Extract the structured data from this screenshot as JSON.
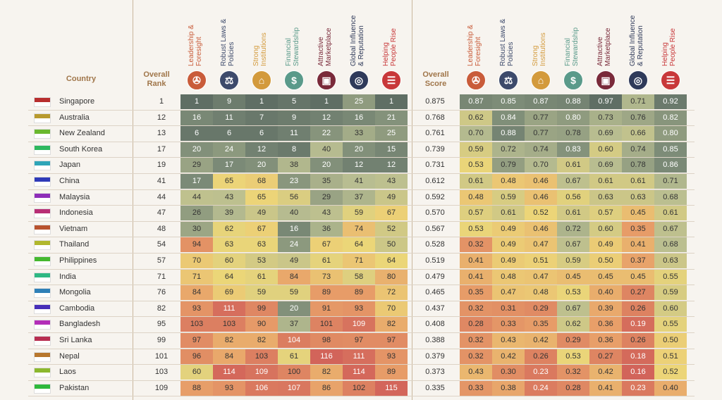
{
  "header": {
    "country": "Country",
    "overall_rank": [
      "Overall",
      "Rank"
    ],
    "overall_score": [
      "Overall",
      "Score"
    ]
  },
  "chart_data": {
    "type": "table",
    "pillars": [
      {
        "label": [
          "Leadership &",
          "Foresight"
        ],
        "color": "#c95c3a",
        "icon": "megaphone-icon"
      },
      {
        "label": [
          "Robust Laws &",
          "Policies"
        ],
        "color": "#3d4a6b",
        "icon": "scales-icon"
      },
      {
        "label": [
          "Strong",
          "Institutions"
        ],
        "color": "#d39a3c",
        "icon": "institution-icon"
      },
      {
        "label": [
          "Financial",
          "Stewardship"
        ],
        "color": "#5a9a8a",
        "icon": "finance-icon"
      },
      {
        "label": [
          "Attractive",
          "Marketplace"
        ],
        "color": "#7a2a3a",
        "icon": "market-icon"
      },
      {
        "label": [
          "Global Influence",
          "& Reputation"
        ],
        "color": "#2f3a5a",
        "icon": "globe-icon"
      },
      {
        "label": [
          "Helping",
          "People Rise"
        ],
        "color": "#c8383a",
        "icon": "ladder-icon"
      }
    ],
    "countries": [
      {
        "name": "Singapore",
        "rank": 1,
        "score": "0.875",
        "ranks": [
          1,
          9,
          1,
          5,
          1,
          25,
          1
        ],
        "scores": [
          "0.87",
          "0.85",
          "0.87",
          "0.88",
          "0.97",
          "0.71",
          "0.92"
        ]
      },
      {
        "name": "Australia",
        "rank": 12,
        "score": "0.768",
        "ranks": [
          16,
          11,
          7,
          9,
          12,
          16,
          21
        ],
        "scores": [
          "0.62",
          "0.84",
          "0.77",
          "0.80",
          "0.73",
          "0.76",
          "0.82"
        ]
      },
      {
        "name": "New Zealand",
        "rank": 13,
        "score": "0.761",
        "ranks": [
          6,
          6,
          6,
          11,
          22,
          33,
          25
        ],
        "scores": [
          "0.70",
          "0.88",
          "0.77",
          "0.78",
          "0.69",
          "0.66",
          "0.80"
        ]
      },
      {
        "name": "South Korea",
        "rank": 17,
        "score": "0.739",
        "ranks": [
          20,
          24,
          12,
          8,
          40,
          20,
          15
        ],
        "scores": [
          "0.59",
          "0.72",
          "0.74",
          "0.83",
          "0.60",
          "0.74",
          "0.85"
        ]
      },
      {
        "name": "Japan",
        "rank": 19,
        "score": "0.731",
        "ranks": [
          29,
          17,
          20,
          38,
          20,
          12,
          12
        ],
        "scores": [
          "0.53",
          "0.79",
          "0.70",
          "0.61",
          "0.69",
          "0.78",
          "0.86"
        ]
      },
      {
        "name": "China",
        "rank": 41,
        "score": "0.612",
        "ranks": [
          17,
          65,
          68,
          23,
          35,
          41,
          43
        ],
        "scores": [
          "0.61",
          "0.48",
          "0.46",
          "0.67",
          "0.61",
          "0.61",
          "0.71"
        ]
      },
      {
        "name": "Malaysia",
        "rank": 44,
        "score": "0.592",
        "ranks": [
          44,
          43,
          65,
          56,
          29,
          37,
          49
        ],
        "scores": [
          "0.48",
          "0.59",
          "0.46",
          "0.56",
          "0.63",
          "0.63",
          "0.68"
        ]
      },
      {
        "name": "Indonesia",
        "rank": 47,
        "score": "0.570",
        "ranks": [
          26,
          39,
          49,
          40,
          43,
          59,
          67
        ],
        "scores": [
          "0.57",
          "0.61",
          "0.52",
          "0.61",
          "0.57",
          "0.45",
          "0.61"
        ]
      },
      {
        "name": "Vietnam",
        "rank": 48,
        "score": "0.567",
        "ranks": [
          30,
          62,
          67,
          16,
          36,
          74,
          52
        ],
        "scores": [
          "0.53",
          "0.49",
          "0.46",
          "0.72",
          "0.60",
          "0.35",
          "0.67"
        ]
      },
      {
        "name": "Thailand",
        "rank": 54,
        "score": "0.528",
        "ranks": [
          94,
          63,
          63,
          24,
          67,
          64,
          50
        ],
        "scores": [
          "0.32",
          "0.49",
          "0.47",
          "0.67",
          "0.49",
          "0.41",
          "0.68"
        ]
      },
      {
        "name": "Philippines",
        "rank": 57,
        "score": "0.519",
        "ranks": [
          70,
          60,
          53,
          49,
          61,
          71,
          64
        ],
        "scores": [
          "0.41",
          "0.49",
          "0.51",
          "0.59",
          "0.50",
          "0.37",
          "0.63"
        ]
      },
      {
        "name": "India",
        "rank": 71,
        "score": "0.479",
        "ranks": [
          71,
          64,
          61,
          84,
          73,
          58,
          80
        ],
        "scores": [
          "0.41",
          "0.48",
          "0.47",
          "0.45",
          "0.45",
          "0.45",
          "0.55"
        ]
      },
      {
        "name": "Mongolia",
        "rank": 76,
        "score": "0.465",
        "ranks": [
          84,
          69,
          59,
          59,
          89,
          89,
          72
        ],
        "scores": [
          "0.35",
          "0.47",
          "0.48",
          "0.53",
          "0.40",
          "0.27",
          "0.59"
        ]
      },
      {
        "name": "Cambodia",
        "rank": 82,
        "score": "0.437",
        "ranks": [
          93,
          111,
          99,
          20,
          91,
          93,
          70
        ],
        "scores": [
          "0.32",
          "0.31",
          "0.29",
          "0.67",
          "0.39",
          "0.26",
          "0.60"
        ]
      },
      {
        "name": "Bangladesh",
        "rank": 95,
        "score": "0.408",
        "ranks": [
          103,
          103,
          90,
          37,
          101,
          109,
          82
        ],
        "scores": [
          "0.28",
          "0.33",
          "0.35",
          "0.62",
          "0.36",
          "0.19",
          "0.55"
        ]
      },
      {
        "name": "Sri Lanka",
        "rank": 99,
        "score": "0.388",
        "ranks": [
          97,
          82,
          82,
          104,
          98,
          97,
          97
        ],
        "scores": [
          "0.32",
          "0.43",
          "0.42",
          "0.29",
          "0.36",
          "0.26",
          "0.50"
        ]
      },
      {
        "name": "Nepal",
        "rank": 101,
        "score": "0.379",
        "ranks": [
          96,
          84,
          103,
          61,
          116,
          111,
          93
        ],
        "scores": [
          "0.32",
          "0.42",
          "0.26",
          "0.53",
          "0.27",
          "0.18",
          "0.51"
        ]
      },
      {
        "name": "Laos",
        "rank": 103,
        "score": "0.373",
        "ranks": [
          60,
          114,
          109,
          100,
          82,
          114,
          89
        ],
        "scores": [
          "0.43",
          "0.30",
          "0.23",
          "0.32",
          "0.42",
          "0.16",
          "0.52"
        ]
      },
      {
        "name": "Pakistan",
        "rank": 109,
        "score": "0.335",
        "ranks": [
          88,
          93,
          106,
          107,
          86,
          102,
          115
        ],
        "scores": [
          "0.33",
          "0.38",
          "0.24",
          "0.28",
          "0.41",
          "0.23",
          "0.40"
        ]
      }
    ]
  }
}
